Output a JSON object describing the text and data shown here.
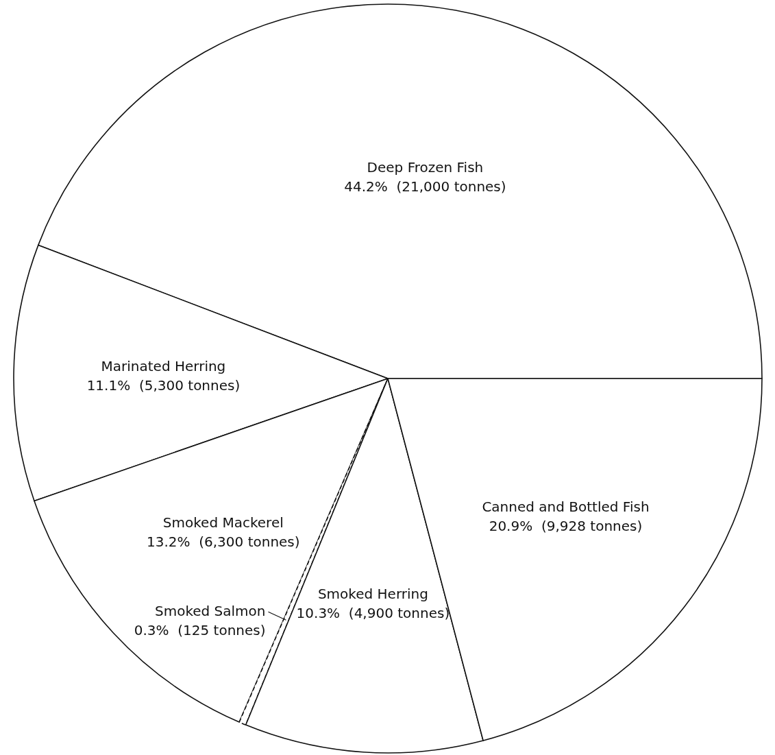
{
  "chart_data": {
    "type": "pie",
    "categories": [
      "Deep Frozen Fish",
      "Marinated Herring",
      "Smoked Mackerel",
      "Smoked Salmon",
      "Smoked Herring",
      "Canned and Bottled Fish"
    ],
    "values": [
      44.2,
      11.1,
      13.2,
      0.3,
      10.3,
      20.9
    ],
    "value_labels": [
      "44.2%  (21,000 tonnes)",
      "11.1%  (5,300 tonnes)",
      "13.2%  (6,300 tonnes)",
      "0.3%  (125 tonnes)",
      "10.3%  (4,900 tonnes)",
      "20.9%  (9,928 tonnes)"
    ],
    "colors": [
      "#ffffff",
      "#ffffff",
      "#ffffff",
      "#ffffff",
      "#ffffff",
      "#ffffff"
    ]
  }
}
